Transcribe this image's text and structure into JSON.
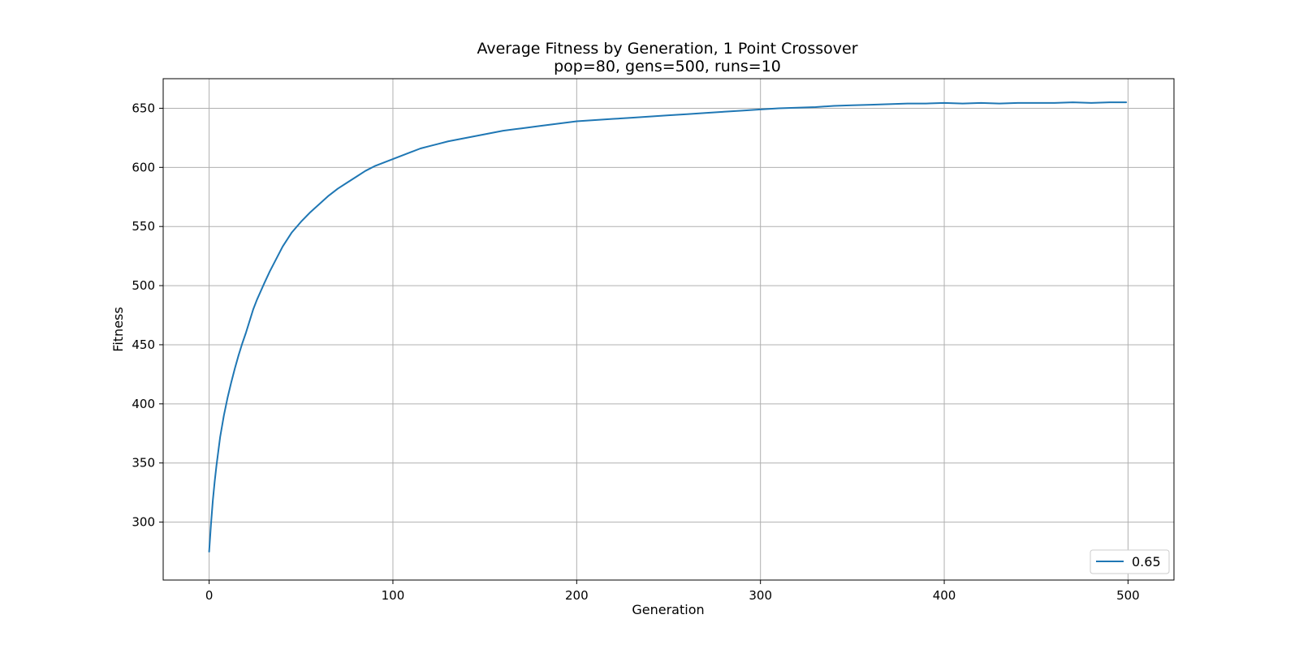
{
  "chart_data": {
    "type": "line",
    "title": "Average Fitness by Generation, 1 Point Crossover",
    "subtitle": "pop=80, gens=500, runs=10",
    "xlabel": "Generation",
    "ylabel": "Fitness",
    "xlim": [
      -25,
      525
    ],
    "ylim": [
      251,
      675
    ],
    "xticks": [
      0,
      100,
      200,
      300,
      400,
      500
    ],
    "yticks": [
      300,
      350,
      400,
      450,
      500,
      550,
      600,
      650
    ],
    "grid": true,
    "legend_position": "lower-right",
    "series": [
      {
        "name": "0.65",
        "color": "#1f77b4",
        "x": [
          0,
          1,
          2,
          3,
          4,
          5,
          6,
          8,
          10,
          12,
          14,
          16,
          18,
          20,
          22,
          24,
          26,
          28,
          30,
          33,
          36,
          40,
          45,
          50,
          55,
          60,
          65,
          70,
          75,
          80,
          85,
          90,
          95,
          100,
          105,
          110,
          115,
          120,
          125,
          130,
          140,
          150,
          160,
          170,
          180,
          190,
          200,
          210,
          220,
          230,
          240,
          250,
          260,
          270,
          280,
          290,
          300,
          310,
          320,
          330,
          340,
          350,
          360,
          370,
          380,
          390,
          400,
          410,
          420,
          430,
          440,
          450,
          460,
          470,
          480,
          490,
          499
        ],
        "y": [
          275,
          298,
          318,
          334,
          348,
          360,
          372,
          390,
          405,
          418,
          430,
          441,
          451,
          460,
          470,
          480,
          488,
          495,
          502,
          512,
          521,
          533,
          545,
          554,
          562,
          569,
          576,
          582,
          587,
          592,
          597,
          601,
          604,
          607,
          610,
          613,
          616,
          618,
          620,
          622,
          625,
          628,
          631,
          633,
          635,
          637,
          639,
          640,
          641,
          642,
          643,
          644,
          645,
          646,
          647,
          648,
          649,
          650,
          650.5,
          651,
          652,
          652.5,
          653,
          653.5,
          654,
          654,
          654.5,
          654,
          654.5,
          654,
          654.5,
          654.5,
          654.5,
          655,
          654.5,
          655,
          655
        ]
      }
    ]
  }
}
